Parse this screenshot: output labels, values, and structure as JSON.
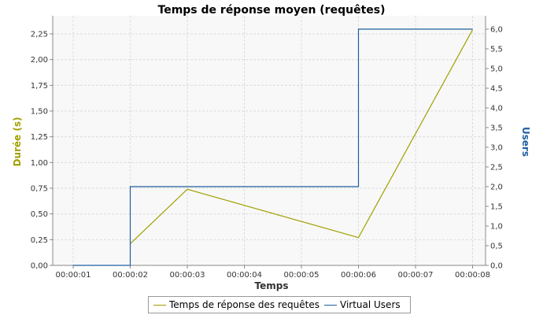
{
  "chart_data": {
    "type": "line",
    "title": "Temps de réponse moyen (requêtes)",
    "xlabel": "Temps",
    "ylabel_left": "Durée (s)",
    "ylabel_right": "Users",
    "x": [
      "00:00:01",
      "00:00:02",
      "00:00:03",
      "00:00:04",
      "00:00:05",
      "00:00:06",
      "00:00:07",
      "00:00:08"
    ],
    "ylim_left": [
      0,
      2.25
    ],
    "ylim_right": [
      0,
      6.0
    ],
    "left_ticks": [
      "0,00",
      "0,25",
      "0,50",
      "0,75",
      "1,00",
      "1,25",
      "1,50",
      "1,75",
      "2,00",
      "2,25"
    ],
    "right_ticks": [
      "0,0",
      "0,5",
      "1,0",
      "1,5",
      "2,0",
      "2,5",
      "3,0",
      "3,5",
      "4,0",
      "4,5",
      "5,0",
      "5,5",
      "6,0"
    ],
    "grid": true,
    "legend_position": "bottom",
    "series": [
      {
        "name": "Temps de réponse des requêtes",
        "axis": "left",
        "step": false,
        "color": "#a0a000",
        "points": [
          {
            "x": "00:00:02",
            "y": 0.21
          },
          {
            "x": "00:00:03",
            "y": 0.74
          },
          {
            "x": "00:00:06",
            "y": 0.27
          },
          {
            "x": "00:00:08",
            "y": 2.29
          }
        ]
      },
      {
        "name": "Virtual Users",
        "axis": "right",
        "step": true,
        "color": "#1f5f9f",
        "points": [
          {
            "x": "00:00:01",
            "y": 0
          },
          {
            "x": "00:00:02",
            "y": 0
          },
          {
            "x": "00:00:02",
            "y": 2
          },
          {
            "x": "00:00:06",
            "y": 2
          },
          {
            "x": "00:00:06",
            "y": 6
          },
          {
            "x": "00:00:08",
            "y": 6
          }
        ]
      }
    ]
  }
}
